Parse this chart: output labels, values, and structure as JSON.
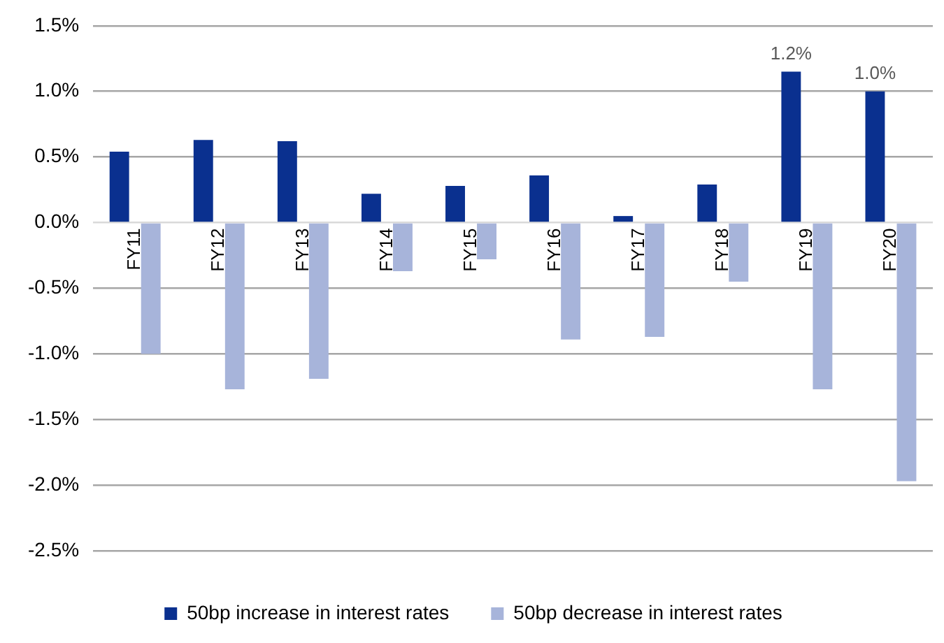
{
  "chart_data": {
    "type": "bar",
    "categories": [
      "FY11",
      "FY12",
      "FY13",
      "FY14",
      "FY15",
      "FY16",
      "FY17",
      "FY18",
      "FY19",
      "FY20"
    ],
    "series": [
      {
        "name": "50bp increase in interest rates",
        "color": "#0a308f",
        "values": [
          0.54,
          0.63,
          0.62,
          0.22,
          0.28,
          0.36,
          0.05,
          0.29,
          1.15,
          1.0
        ],
        "value_labels": [
          null,
          null,
          null,
          null,
          null,
          null,
          null,
          null,
          "1.2%",
          "1.0%"
        ]
      },
      {
        "name": "50bp decrease in interest rates",
        "color": "#a7b4da",
        "values": [
          -1.0,
          -1.27,
          -1.19,
          -0.37,
          -0.28,
          -0.89,
          -0.87,
          -0.45,
          -1.27,
          -1.97
        ]
      }
    ],
    "ylim": [
      -2.5,
      1.5
    ],
    "yticks": [
      {
        "value": 1.5,
        "label": "1.5%"
      },
      {
        "value": 1.0,
        "label": "1.0%"
      },
      {
        "value": 0.5,
        "label": "0.5%"
      },
      {
        "value": 0,
        "label": "0.0%"
      },
      {
        "value": -0.5,
        "label": "-0.5%"
      },
      {
        "value": -1.0,
        "label": "-1.0%"
      },
      {
        "value": -1.5,
        "label": "-1.5%"
      },
      {
        "value": -2.0,
        "label": "-2.0%"
      },
      {
        "value": -2.5,
        "label": "-2.5%"
      }
    ],
    "grid": "y",
    "legend": "bottom"
  }
}
